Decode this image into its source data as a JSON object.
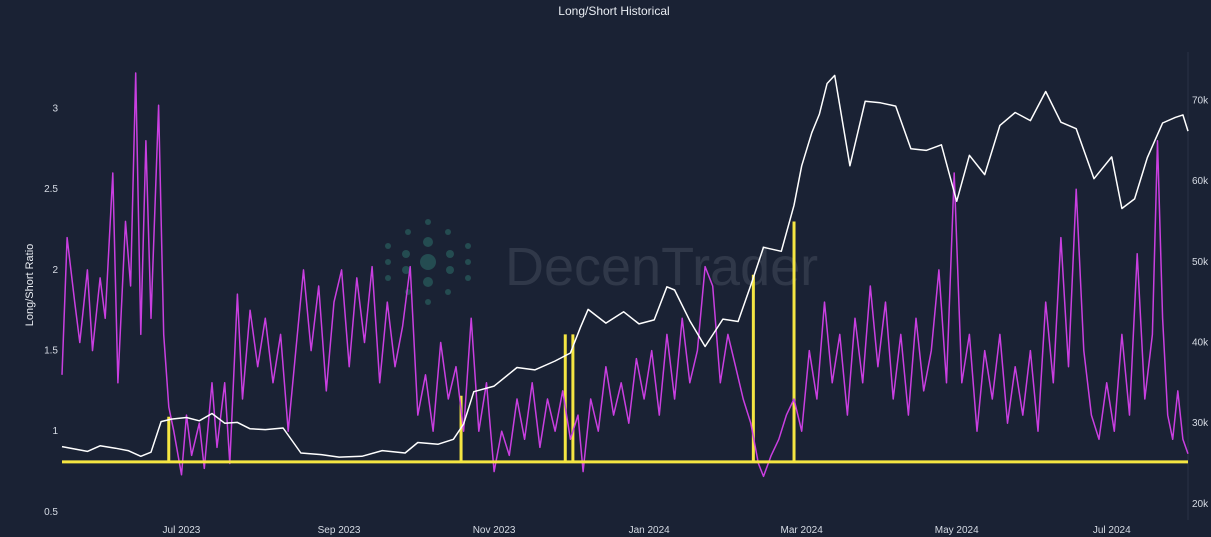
{
  "chart_data": {
    "type": "line",
    "title": "Long/Short Historical",
    "ylabel_left": "Long/Short Ratio",
    "ylabel_right": "",
    "x_range": [
      "2023-05-15",
      "2024-07-31"
    ],
    "x_ticks": [
      "Jul 2023",
      "Sep 2023",
      "Nov 2023",
      "Jan 2024",
      "Mar 2024",
      "May 2024",
      "Jul 2024"
    ],
    "x_tick_dates": [
      "2023-07-01",
      "2023-09-01",
      "2023-11-01",
      "2024-01-01",
      "2024-03-01",
      "2024-05-01",
      "2024-07-01"
    ],
    "ylim_left": [
      0.45,
      3.35
    ],
    "yticks_left": [
      0.5,
      1,
      1.5,
      2,
      2.5,
      3
    ],
    "ytick_labels_left": [
      "0.5",
      "1",
      "1.5",
      "2",
      "2.5",
      "3"
    ],
    "ylim_right": [
      18000,
      76000
    ],
    "yticks_right": [
      20000,
      30000,
      40000,
      50000,
      60000,
      70000
    ],
    "ytick_labels_right": [
      "20k",
      "30k",
      "40k",
      "50k",
      "60k",
      "70k"
    ],
    "threshold": 0.81,
    "series": [
      {
        "axis": "left",
        "color": "#c93fe0",
        "points": [
          [
            "2023-05-15",
            1.35
          ],
          [
            "2023-05-17",
            2.2
          ],
          [
            "2023-05-20",
            1.8
          ],
          [
            "2023-05-22",
            1.55
          ],
          [
            "2023-05-25",
            2.0
          ],
          [
            "2023-05-27",
            1.5
          ],
          [
            "2023-05-30",
            1.95
          ],
          [
            "2023-06-01",
            1.7
          ],
          [
            "2023-06-04",
            2.6
          ],
          [
            "2023-06-06",
            1.3
          ],
          [
            "2023-06-09",
            2.3
          ],
          [
            "2023-06-11",
            1.9
          ],
          [
            "2023-06-13",
            3.22
          ],
          [
            "2023-06-15",
            1.6
          ],
          [
            "2023-06-17",
            2.8
          ],
          [
            "2023-06-19",
            1.7
          ],
          [
            "2023-06-22",
            3.02
          ],
          [
            "2023-06-24",
            1.6
          ],
          [
            "2023-06-26",
            1.15
          ],
          [
            "2023-06-28",
            1.0
          ],
          [
            "2023-07-01",
            0.73
          ],
          [
            "2023-07-03",
            1.1
          ],
          [
            "2023-07-05",
            0.85
          ],
          [
            "2023-07-08",
            1.05
          ],
          [
            "2023-07-10",
            0.77
          ],
          [
            "2023-07-13",
            1.3
          ],
          [
            "2023-07-15",
            0.9
          ],
          [
            "2023-07-18",
            1.3
          ],
          [
            "2023-07-20",
            0.8
          ],
          [
            "2023-07-23",
            1.85
          ],
          [
            "2023-07-25",
            1.2
          ],
          [
            "2023-07-28",
            1.75
          ],
          [
            "2023-07-31",
            1.4
          ],
          [
            "2023-08-03",
            1.7
          ],
          [
            "2023-08-06",
            1.3
          ],
          [
            "2023-08-09",
            1.6
          ],
          [
            "2023-08-12",
            1.0
          ],
          [
            "2023-08-15",
            1.5
          ],
          [
            "2023-08-18",
            2.0
          ],
          [
            "2023-08-21",
            1.5
          ],
          [
            "2023-08-24",
            1.9
          ],
          [
            "2023-08-27",
            1.25
          ],
          [
            "2023-08-30",
            1.8
          ],
          [
            "2023-09-02",
            2.0
          ],
          [
            "2023-09-05",
            1.4
          ],
          [
            "2023-09-08",
            1.95
          ],
          [
            "2023-09-11",
            1.55
          ],
          [
            "2023-09-14",
            2.02
          ],
          [
            "2023-09-17",
            1.3
          ],
          [
            "2023-09-20",
            1.8
          ],
          [
            "2023-09-23",
            1.4
          ],
          [
            "2023-09-26",
            1.65
          ],
          [
            "2023-09-29",
            2.02
          ],
          [
            "2023-10-02",
            1.1
          ],
          [
            "2023-10-05",
            1.35
          ],
          [
            "2023-10-08",
            1.0
          ],
          [
            "2023-10-11",
            1.55
          ],
          [
            "2023-10-14",
            1.2
          ],
          [
            "2023-10-17",
            1.4
          ],
          [
            "2023-10-20",
            1.0
          ],
          [
            "2023-10-23",
            1.7
          ],
          [
            "2023-10-26",
            1.0
          ],
          [
            "2023-10-29",
            1.3
          ],
          [
            "2023-11-01",
            0.75
          ],
          [
            "2023-11-04",
            1.0
          ],
          [
            "2023-11-07",
            0.85
          ],
          [
            "2023-11-10",
            1.2
          ],
          [
            "2023-11-13",
            0.95
          ],
          [
            "2023-11-16",
            1.3
          ],
          [
            "2023-11-19",
            0.9
          ],
          [
            "2023-11-22",
            1.2
          ],
          [
            "2023-11-25",
            1.0
          ],
          [
            "2023-11-28",
            1.25
          ],
          [
            "2023-12-01",
            0.95
          ],
          [
            "2023-12-04",
            1.1
          ],
          [
            "2023-12-06",
            0.75
          ],
          [
            "2023-12-09",
            1.2
          ],
          [
            "2023-12-12",
            1.0
          ],
          [
            "2023-12-15",
            1.4
          ],
          [
            "2023-12-18",
            1.1
          ],
          [
            "2023-12-21",
            1.3
          ],
          [
            "2023-12-24",
            1.05
          ],
          [
            "2023-12-27",
            1.45
          ],
          [
            "2023-12-30",
            1.2
          ],
          [
            "2024-01-02",
            1.5
          ],
          [
            "2024-01-05",
            1.1
          ],
          [
            "2024-01-08",
            1.6
          ],
          [
            "2024-01-11",
            1.2
          ],
          [
            "2024-01-14",
            1.7
          ],
          [
            "2024-01-17",
            1.3
          ],
          [
            "2024-01-20",
            1.5
          ],
          [
            "2024-01-23",
            2.02
          ],
          [
            "2024-01-26",
            1.9
          ],
          [
            "2024-01-29",
            1.3
          ],
          [
            "2024-02-01",
            1.6
          ],
          [
            "2024-02-04",
            1.4
          ],
          [
            "2024-02-07",
            1.2
          ],
          [
            "2024-02-10",
            1.05
          ],
          [
            "2024-02-13",
            0.8
          ],
          [
            "2024-02-15",
            0.72
          ],
          [
            "2024-02-18",
            0.85
          ],
          [
            "2024-02-21",
            0.95
          ],
          [
            "2024-02-24",
            1.1
          ],
          [
            "2024-02-27",
            1.2
          ],
          [
            "2024-03-01",
            1.0
          ],
          [
            "2024-03-04",
            1.5
          ],
          [
            "2024-03-07",
            1.2
          ],
          [
            "2024-03-10",
            1.8
          ],
          [
            "2024-03-13",
            1.3
          ],
          [
            "2024-03-16",
            1.6
          ],
          [
            "2024-03-19",
            1.1
          ],
          [
            "2024-03-22",
            1.7
          ],
          [
            "2024-03-25",
            1.3
          ],
          [
            "2024-03-28",
            1.9
          ],
          [
            "2024-03-31",
            1.4
          ],
          [
            "2024-04-03",
            1.8
          ],
          [
            "2024-04-06",
            1.2
          ],
          [
            "2024-04-09",
            1.6
          ],
          [
            "2024-04-12",
            1.1
          ],
          [
            "2024-04-15",
            1.7
          ],
          [
            "2024-04-18",
            1.25
          ],
          [
            "2024-04-21",
            1.5
          ],
          [
            "2024-04-24",
            2.0
          ],
          [
            "2024-04-27",
            1.3
          ],
          [
            "2024-04-30",
            2.6
          ],
          [
            "2024-05-03",
            1.3
          ],
          [
            "2024-05-06",
            1.6
          ],
          [
            "2024-05-09",
            1.0
          ],
          [
            "2024-05-12",
            1.5
          ],
          [
            "2024-05-15",
            1.2
          ],
          [
            "2024-05-18",
            1.6
          ],
          [
            "2024-05-21",
            1.05
          ],
          [
            "2024-05-24",
            1.4
          ],
          [
            "2024-05-27",
            1.1
          ],
          [
            "2024-05-30",
            1.5
          ],
          [
            "2024-06-02",
            1.0
          ],
          [
            "2024-06-05",
            1.8
          ],
          [
            "2024-06-08",
            1.3
          ],
          [
            "2024-06-11",
            2.2
          ],
          [
            "2024-06-14",
            1.4
          ],
          [
            "2024-06-17",
            2.5
          ],
          [
            "2024-06-20",
            1.5
          ],
          [
            "2024-06-23",
            1.1
          ],
          [
            "2024-06-26",
            0.95
          ],
          [
            "2024-06-29",
            1.3
          ],
          [
            "2024-07-02",
            1.0
          ],
          [
            "2024-07-05",
            1.6
          ],
          [
            "2024-07-08",
            1.1
          ],
          [
            "2024-07-11",
            2.1
          ],
          [
            "2024-07-14",
            1.2
          ],
          [
            "2024-07-17",
            1.6
          ],
          [
            "2024-07-19",
            2.8
          ],
          [
            "2024-07-21",
            1.7
          ],
          [
            "2024-07-23",
            1.1
          ],
          [
            "2024-07-25",
            0.95
          ],
          [
            "2024-07-27",
            1.25
          ],
          [
            "2024-07-29",
            0.95
          ],
          [
            "2024-07-31",
            0.86
          ]
        ]
      },
      {
        "axis": "right",
        "color": "#ffffff",
        "points": [
          [
            "2023-05-15",
            27100
          ],
          [
            "2023-05-20",
            26800
          ],
          [
            "2023-05-25",
            26500
          ],
          [
            "2023-05-30",
            27200
          ],
          [
            "2023-06-05",
            26900
          ],
          [
            "2023-06-10",
            26600
          ],
          [
            "2023-06-15",
            25900
          ],
          [
            "2023-06-19",
            26400
          ],
          [
            "2023-06-23",
            30200
          ],
          [
            "2023-06-27",
            30500
          ],
          [
            "2023-07-03",
            30700
          ],
          [
            "2023-07-08",
            30300
          ],
          [
            "2023-07-13",
            31200
          ],
          [
            "2023-07-18",
            30000
          ],
          [
            "2023-07-23",
            30100
          ],
          [
            "2023-07-28",
            29300
          ],
          [
            "2023-08-03",
            29200
          ],
          [
            "2023-08-10",
            29400
          ],
          [
            "2023-08-17",
            26300
          ],
          [
            "2023-08-25",
            26100
          ],
          [
            "2023-09-01",
            25800
          ],
          [
            "2023-09-10",
            25900
          ],
          [
            "2023-09-18",
            26600
          ],
          [
            "2023-09-27",
            26300
          ],
          [
            "2023-10-02",
            27600
          ],
          [
            "2023-10-10",
            27400
          ],
          [
            "2023-10-16",
            28000
          ],
          [
            "2023-10-20",
            29900
          ],
          [
            "2023-10-24",
            33900
          ],
          [
            "2023-11-01",
            34600
          ],
          [
            "2023-11-10",
            36900
          ],
          [
            "2023-11-17",
            36600
          ],
          [
            "2023-11-25",
            37700
          ],
          [
            "2023-12-01",
            38700
          ],
          [
            "2023-12-05",
            41900
          ],
          [
            "2023-12-08",
            44100
          ],
          [
            "2023-12-15",
            42400
          ],
          [
            "2023-12-22",
            43800
          ],
          [
            "2023-12-28",
            42300
          ],
          [
            "2024-01-03",
            42800
          ],
          [
            "2024-01-08",
            46900
          ],
          [
            "2024-01-11",
            46500
          ],
          [
            "2024-01-17",
            42700
          ],
          [
            "2024-01-23",
            39500
          ],
          [
            "2024-01-30",
            42900
          ],
          [
            "2024-02-05",
            42600
          ],
          [
            "2024-02-10",
            47100
          ],
          [
            "2024-02-15",
            51800
          ],
          [
            "2024-02-22",
            51300
          ],
          [
            "2024-02-27",
            57000
          ],
          [
            "2024-03-01",
            61900
          ],
          [
            "2024-03-05",
            66000
          ],
          [
            "2024-03-08",
            68300
          ],
          [
            "2024-03-11",
            72100
          ],
          [
            "2024-03-14",
            73100
          ],
          [
            "2024-03-20",
            61900
          ],
          [
            "2024-03-26",
            69900
          ],
          [
            "2024-04-01",
            69700
          ],
          [
            "2024-04-07",
            69300
          ],
          [
            "2024-04-13",
            64000
          ],
          [
            "2024-04-19",
            63800
          ],
          [
            "2024-04-25",
            64500
          ],
          [
            "2024-05-01",
            57500
          ],
          [
            "2024-05-06",
            63200
          ],
          [
            "2024-05-12",
            60800
          ],
          [
            "2024-05-18",
            66900
          ],
          [
            "2024-05-24",
            68500
          ],
          [
            "2024-05-30",
            67500
          ],
          [
            "2024-06-05",
            71100
          ],
          [
            "2024-06-11",
            67300
          ],
          [
            "2024-06-17",
            66500
          ],
          [
            "2024-06-24",
            60300
          ],
          [
            "2024-07-01",
            63000
          ],
          [
            "2024-07-05",
            56600
          ],
          [
            "2024-07-10",
            57800
          ],
          [
            "2024-07-15",
            62900
          ],
          [
            "2024-07-21",
            67200
          ],
          [
            "2024-07-26",
            67900
          ],
          [
            "2024-07-29",
            68200
          ],
          [
            "2024-07-31",
            66200
          ]
        ]
      }
    ],
    "markers": [
      [
        "2023-06-26",
        1.09
      ],
      [
        "2023-10-19",
        1.22
      ],
      [
        "2023-11-29",
        1.6
      ],
      [
        "2023-12-02",
        1.6
      ],
      [
        "2024-02-11",
        1.97
      ],
      [
        "2024-02-27",
        2.3
      ]
    ],
    "watermark": "DecenTrader",
    "grid": false,
    "legend": "none"
  },
  "colors": {
    "background": "#1a2234",
    "ratio_line": "#c93fe0",
    "price_line": "#ffffff",
    "threshold": "#f5e642",
    "axis_text": "#d6dbe4"
  }
}
